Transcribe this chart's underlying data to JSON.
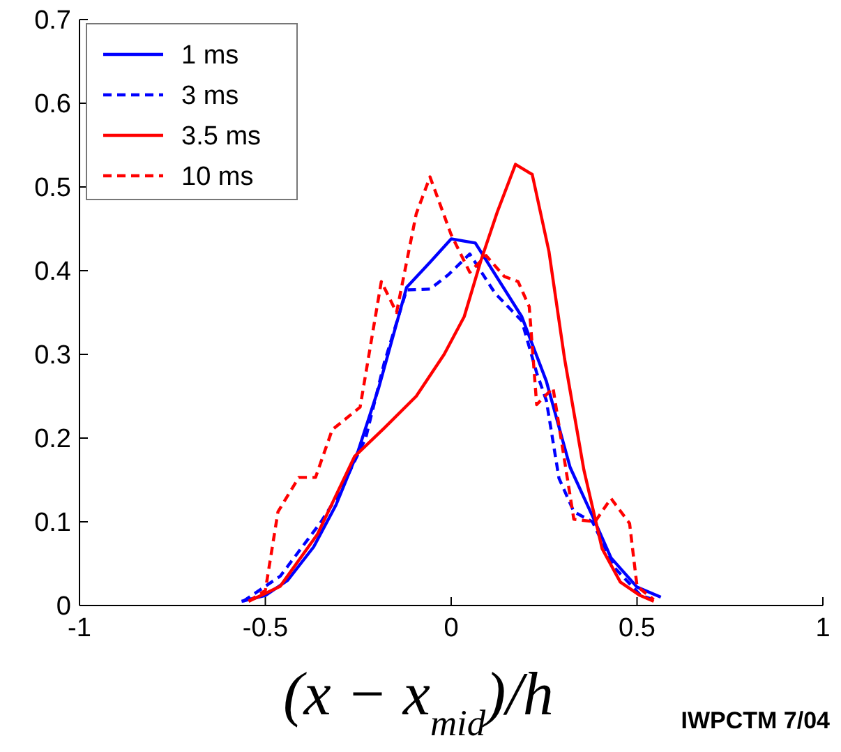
{
  "chart_data": {
    "type": "line",
    "xlabel": "(x − x$_{mid}$)/h",
    "annotations": [
      "IWPCTM 7/04"
    ],
    "xlim": [
      -1,
      1
    ],
    "xticks": [
      -1,
      -0.5,
      0,
      0.5,
      1
    ],
    "ylim": [
      0,
      0.7
    ],
    "yticks": [
      0,
      0.1,
      0.2,
      0.3,
      0.4,
      0.5,
      0.6,
      0.7
    ],
    "grid": false,
    "legend": "top left",
    "series": [
      {
        "name": "1 ms",
        "color": "#0000ff",
        "line_style": "solid",
        "x": [
          -0.564,
          -0.5,
          -0.44,
          -0.37,
          -0.31,
          -0.25,
          -0.195,
          -0.12,
          -0.057,
          0,
          0.065,
          0.19,
          0.256,
          0.32,
          0.38,
          0.43,
          0.5,
          0.564
        ],
        "values": [
          0.005,
          0.012,
          0.03,
          0.07,
          0.12,
          0.185,
          0.26,
          0.38,
          0.41,
          0.438,
          0.433,
          0.345,
          0.268,
          0.165,
          0.107,
          0.057,
          0.022,
          0.01
        ]
      },
      {
        "name": "3 ms",
        "color": "#0000ff",
        "line_style": "dashed",
        "x": [
          -0.56,
          -0.46,
          -0.35,
          -0.3,
          -0.23,
          -0.18,
          -0.12,
          -0.057,
          -0.008,
          0.05,
          0.118,
          0.19,
          0.23,
          0.256,
          0.29,
          0.33,
          0.38,
          0.44,
          0.51,
          0.545
        ],
        "values": [
          0.005,
          0.035,
          0.1,
          0.135,
          0.2,
          0.29,
          0.377,
          0.378,
          0.395,
          0.42,
          0.373,
          0.34,
          0.278,
          0.245,
          0.152,
          0.112,
          0.1,
          0.045,
          0.012,
          0.007
        ]
      },
      {
        "name": "3.5 ms",
        "color": "#ff0000",
        "line_style": "solid",
        "x": [
          -0.545,
          -0.46,
          -0.36,
          -0.26,
          -0.18,
          -0.094,
          -0.019,
          0.035,
          0.08,
          0.124,
          0.173,
          0.218,
          0.263,
          0.305,
          0.357,
          0.406,
          0.455,
          0.508,
          0.545
        ],
        "values": [
          0.005,
          0.023,
          0.085,
          0.178,
          0.212,
          0.25,
          0.3,
          0.345,
          0.412,
          0.47,
          0.527,
          0.515,
          0.423,
          0.295,
          0.162,
          0.068,
          0.028,
          0.012,
          0.005
        ]
      },
      {
        "name": "10 ms",
        "color": "#ff0000",
        "line_style": "dashed",
        "x": [
          -0.545,
          -0.5,
          -0.466,
          -0.41,
          -0.365,
          -0.32,
          -0.245,
          -0.188,
          -0.147,
          -0.094,
          -0.057,
          0,
          0.05,
          0.094,
          0.143,
          0.18,
          0.21,
          0.23,
          0.274,
          0.33,
          0.387,
          0.43,
          0.48,
          0.5,
          0.545
        ],
        "values": [
          0.005,
          0.018,
          0.112,
          0.153,
          0.153,
          0.21,
          0.237,
          0.387,
          0.35,
          0.468,
          0.512,
          0.443,
          0.398,
          0.418,
          0.393,
          0.387,
          0.357,
          0.24,
          0.26,
          0.103,
          0.1,
          0.128,
          0.098,
          0.023,
          0.007
        ]
      }
    ]
  }
}
